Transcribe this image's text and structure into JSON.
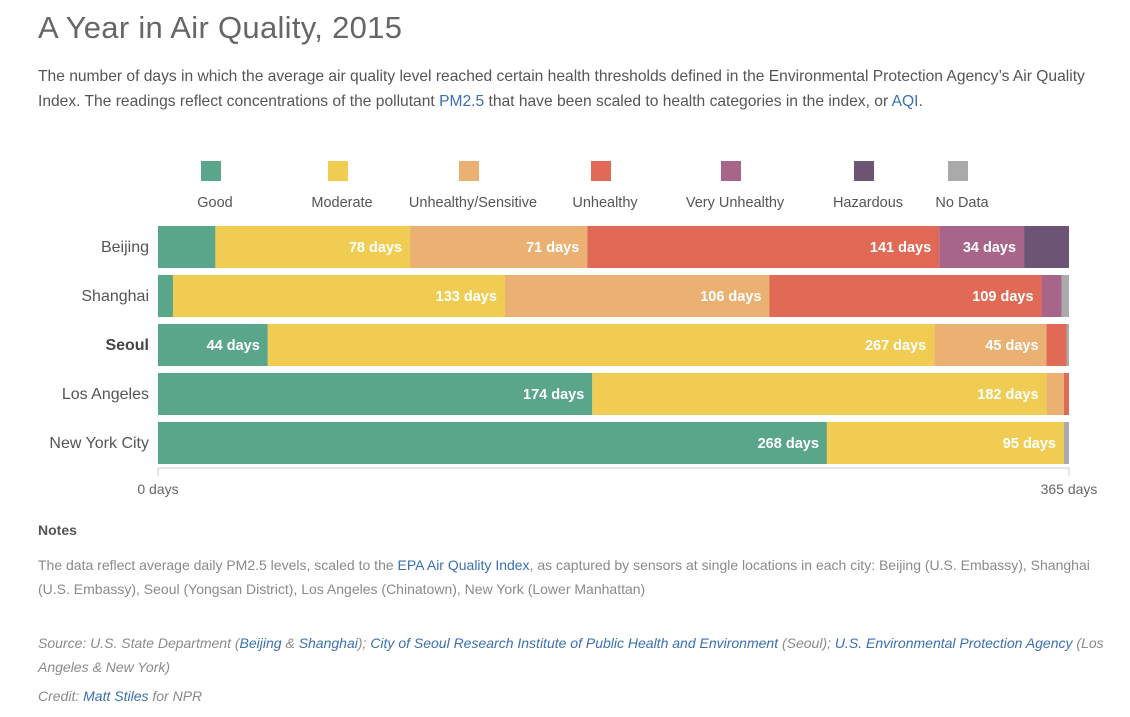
{
  "header": {
    "title": "A Year in Air Quality, 2015",
    "subtitle_parts": {
      "p1": "The number of days in which the average air quality level reached certain health thresholds defined in the Environmental Protection Agency’s Air Quality Index. The readings reflect concentrations of the pollutant ",
      "link1": "PM2.5",
      "p2": " that have been scaled to health categories in the index, or ",
      "link2": "AQI",
      "p3": "."
    }
  },
  "chart_data": {
    "type": "bar",
    "orientation": "horizontal",
    "stacked": true,
    "xlim": [
      0,
      365
    ],
    "x_ticks": [
      "0 days",
      "365 days"
    ],
    "categories": [
      "Beijing",
      "Shanghai",
      "Seoul",
      "Los Angeles",
      "New York City"
    ],
    "highlighted_category": "Seoul",
    "series": [
      {
        "name": "Good",
        "color": "#5aa68b",
        "values": [
          23,
          6,
          44,
          174,
          268
        ]
      },
      {
        "name": "Moderate",
        "color": "#f0cd52",
        "values": [
          78,
          133,
          267,
          182,
          95
        ]
      },
      {
        "name": "Unhealthy/Sensitive",
        "color": "#ebb173",
        "values": [
          71,
          106,
          45,
          7,
          0
        ]
      },
      {
        "name": "Unhealthy",
        "color": "#e06a55",
        "values": [
          141,
          109,
          8,
          2,
          0
        ]
      },
      {
        "name": "Very Unhealthy",
        "color": "#a8658a",
        "values": [
          34,
          8,
          0,
          0,
          0
        ]
      },
      {
        "name": "Hazardous",
        "color": "#6c5474",
        "values": [
          18,
          0,
          0,
          0,
          0
        ]
      },
      {
        "name": "No Data",
        "color": "#aaaaaa",
        "values": [
          0,
          3,
          1,
          0,
          2
        ]
      }
    ],
    "data_labels": [
      {
        "category": "Beijing",
        "series": "Moderate",
        "text": "78 days"
      },
      {
        "category": "Beijing",
        "series": "Unhealthy/Sensitive",
        "text": "71 days"
      },
      {
        "category": "Beijing",
        "series": "Unhealthy",
        "text": "141 days"
      },
      {
        "category": "Beijing",
        "series": "Very Unhealthy",
        "text": "34 days"
      },
      {
        "category": "Shanghai",
        "series": "Moderate",
        "text": "133 days"
      },
      {
        "category": "Shanghai",
        "series": "Unhealthy/Sensitive",
        "text": "106 days"
      },
      {
        "category": "Shanghai",
        "series": "Unhealthy",
        "text": "109 days"
      },
      {
        "category": "Seoul",
        "series": "Good",
        "text": "44 days"
      },
      {
        "category": "Seoul",
        "series": "Moderate",
        "text": "267 days"
      },
      {
        "category": "Seoul",
        "series": "Unhealthy/Sensitive",
        "text": "45 days"
      },
      {
        "category": "Los Angeles",
        "series": "Good",
        "text": "174 days"
      },
      {
        "category": "Los Angeles",
        "series": "Moderate",
        "text": "182 days"
      },
      {
        "category": "New York City",
        "series": "Good",
        "text": "268 days"
      },
      {
        "category": "New York City",
        "series": "Moderate",
        "text": "95 days"
      }
    ],
    "legend_placement": "top",
    "grid": false
  },
  "notes": {
    "heading": "Notes",
    "p1": "The data reflect average daily PM2.5 levels, scaled to the ",
    "link": "EPA Air Quality Index",
    "p2": ", as captured by sensors at single locations in each city: Beijing (U.S. Embassy), Shanghai (U.S. Embassy), Seoul (Yongsan District), Los Angeles (Chinatown), New York (Lower Manhattan)"
  },
  "source": {
    "prefix": "Source: U.S. State Department (",
    "link1": "Beijing",
    "sep1": " & ",
    "link2": "Shanghai",
    "mid": "); ",
    "link3": "City of Seoul Research Institute of Public Health and Environment",
    "mid2": " (Seoul); ",
    "link4": "U.S. Environmental Protection Agency",
    "suffix": " (Los Angeles & New York)"
  },
  "credit": {
    "prefix": "Credit: ",
    "link": "Matt Stiles",
    "suffix": " for NPR"
  }
}
